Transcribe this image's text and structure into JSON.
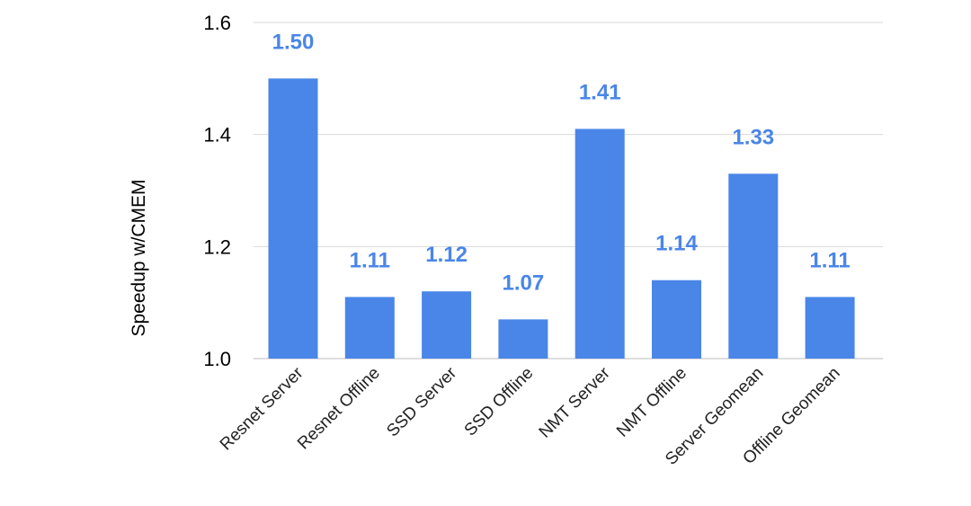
{
  "chart_data": {
    "type": "bar",
    "title": "",
    "xlabel": "",
    "ylabel": "Speedup w/CMEM",
    "categories": [
      "Resnet Server",
      "Resnet Offline",
      "SSD Server",
      "SSD Offline",
      "NMT Server",
      "NMT Offline",
      "Server Geomean",
      "Offline Geomean"
    ],
    "values": [
      1.5,
      1.11,
      1.12,
      1.07,
      1.41,
      1.14,
      1.33,
      1.11
    ],
    "data_labels": [
      "1.50",
      "1.11",
      "1.12",
      "1.07",
      "1.41",
      "1.14",
      "1.33",
      "1.11"
    ],
    "ylim": [
      1.0,
      1.6
    ],
    "yticks": [
      1.0,
      1.2,
      1.4,
      1.6
    ],
    "ytick_labels": [
      "1.0",
      "1.2",
      "1.4",
      "1.6"
    ],
    "grid": true,
    "legend": "none",
    "colors": {
      "bar": "#4a86e8",
      "label": "#4a86e8"
    }
  }
}
